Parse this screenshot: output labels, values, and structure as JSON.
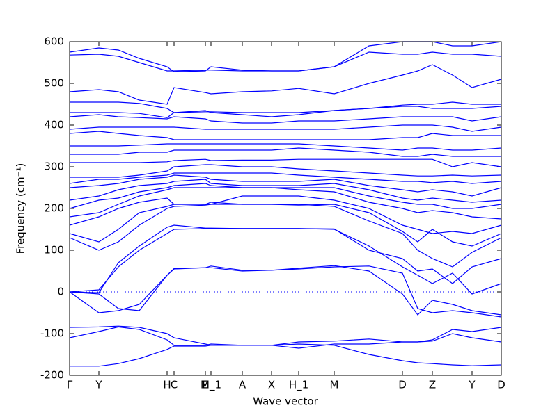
{
  "chart_data": {
    "type": "line",
    "ylabel": "Frequency (cm⁻¹)",
    "xlabel": "Wave vector",
    "color": "#0000ff",
    "zero_line": true,
    "xlim": [
      0,
      6.2
    ],
    "ylim": [
      -200,
      600
    ],
    "yticks": [
      -200,
      -100,
      0,
      100,
      200,
      300,
      400,
      500,
      600
    ],
    "xticks": [
      {
        "value": 0,
        "label": "Γ"
      },
      {
        "value": 0.42,
        "label": "Y"
      },
      {
        "value": 1.4,
        "label": "H"
      },
      {
        "value": 1.5,
        "label": "C"
      },
      {
        "value": 1.95,
        "label": "E"
      },
      {
        "value": 2.03,
        "label": "M_1"
      },
      {
        "value": 2.48,
        "label": "A"
      },
      {
        "value": 2.9,
        "label": "X"
      },
      {
        "value": 3.29,
        "label": "H_1"
      },
      {
        "value": 3.8,
        "label": "M"
      },
      {
        "value": 4.78,
        "label": "D"
      },
      {
        "value": 5.21,
        "label": "Z"
      },
      {
        "value": 5.78,
        "label": "Y"
      },
      {
        "value": 6.2,
        "label": "D"
      }
    ],
    "x": [
      0,
      0.42,
      0.7,
      1.0,
      1.4,
      1.5,
      1.95,
      2.03,
      2.48,
      2.9,
      3.29,
      3.8,
      4.3,
      4.78,
      5.0,
      5.21,
      5.5,
      5.78,
      6.2
    ],
    "series": [
      {
        "values": [
          -178,
          -178,
          -172,
          -160,
          -138,
          -130,
          -130,
          -128,
          -128,
          -128,
          -125,
          -128,
          -150,
          -165,
          -170,
          -172,
          -175,
          -177,
          -175
        ]
      },
      {
        "values": [
          -110,
          -95,
          -84,
          -90,
          -115,
          -128,
          -128,
          -125,
          -128,
          -128,
          -120,
          -118,
          -113,
          -120,
          -120,
          -118,
          -100,
          -110,
          -120
        ]
      },
      {
        "values": [
          -85,
          -84,
          -82,
          -85,
          -100,
          -110,
          -125,
          -128,
          -128,
          -128,
          -135,
          -125,
          -125,
          -120,
          -120,
          -115,
          -90,
          -95,
          -85
        ]
      },
      {
        "values": [
          0,
          -50,
          -45,
          -30,
          40,
          55,
          58,
          58,
          50,
          52,
          55,
          60,
          62,
          45,
          -40,
          -50,
          -45,
          -50,
          -60
        ]
      },
      {
        "values": [
          0,
          -5,
          -40,
          -45,
          40,
          56,
          58,
          62,
          52,
          52,
          57,
          63,
          50,
          -5,
          -55,
          -20,
          -30,
          -45,
          -55
        ]
      },
      {
        "values": [
          0,
          5,
          60,
          100,
          140,
          150,
          152,
          152,
          152,
          152,
          152,
          150,
          110,
          60,
          40,
          20,
          45,
          -5,
          20
        ]
      },
      {
        "values": [
          0,
          -2,
          70,
          110,
          155,
          160,
          153,
          153,
          152,
          152,
          152,
          151,
          100,
          80,
          50,
          55,
          20,
          60,
          80
        ]
      },
      {
        "values": [
          130,
          100,
          120,
          160,
          200,
          205,
          208,
          210,
          210,
          210,
          210,
          205,
          170,
          140,
          100,
          80,
          60,
          95,
          130
        ]
      },
      {
        "values": [
          140,
          120,
          150,
          190,
          205,
          210,
          210,
          215,
          210,
          210,
          208,
          210,
          190,
          145,
          120,
          150,
          120,
          110,
          140
        ]
      },
      {
        "values": [
          160,
          180,
          200,
          215,
          225,
          210,
          210,
          210,
          230,
          230,
          230,
          220,
          200,
          160,
          150,
          140,
          145,
          140,
          160
        ]
      },
      {
        "values": [
          180,
          190,
          210,
          230,
          245,
          250,
          250,
          250,
          250,
          250,
          245,
          240,
          215,
          200,
          190,
          195,
          190,
          180,
          175
        ]
      },
      {
        "values": [
          200,
          220,
          225,
          240,
          250,
          255,
          260,
          255,
          250,
          250,
          250,
          250,
          230,
          215,
          210,
          210,
          200,
          200,
          210
        ]
      },
      {
        "values": [
          220,
          230,
          245,
          255,
          260,
          265,
          270,
          260,
          255,
          255,
          255,
          260,
          245,
          225,
          220,
          225,
          220,
          215,
          220
        ]
      },
      {
        "values": [
          250,
          255,
          260,
          270,
          275,
          280,
          275,
          270,
          265,
          265,
          265,
          270,
          255,
          245,
          240,
          245,
          240,
          230,
          250
        ]
      },
      {
        "values": [
          260,
          270,
          270,
          275,
          280,
          285,
          285,
          285,
          285,
          285,
          280,
          275,
          270,
          265,
          265,
          262,
          265,
          260,
          265
        ]
      },
      {
        "values": [
          275,
          275,
          275,
          280,
          290,
          300,
          305,
          305,
          300,
          300,
          295,
          290,
          285,
          280,
          278,
          278,
          280,
          278,
          280
        ]
      },
      {
        "values": [
          310,
          310,
          310,
          310,
          312,
          315,
          318,
          315,
          316,
          316,
          318,
          318,
          318,
          318,
          318,
          318,
          300,
          310,
          300
        ]
      },
      {
        "values": [
          330,
          330,
          330,
          335,
          335,
          340,
          340,
          340,
          340,
          340,
          345,
          340,
          335,
          325,
          325,
          330,
          325,
          325,
          325
        ]
      },
      {
        "values": [
          350,
          350,
          350,
          352,
          355,
          355,
          355,
          355,
          355,
          355,
          355,
          350,
          345,
          340,
          345,
          345,
          340,
          340,
          345
        ]
      },
      {
        "values": [
          380,
          385,
          380,
          375,
          370,
          365,
          365,
          365,
          365,
          365,
          365,
          365,
          365,
          370,
          370,
          380,
          375,
          375,
          375
        ]
      },
      {
        "values": [
          390,
          395,
          395,
          395,
          395,
          395,
          390,
          390,
          390,
          390,
          390,
          390,
          395,
          400,
          400,
          400,
          395,
          385,
          395
        ]
      },
      {
        "values": [
          420,
          425,
          420,
          418,
          415,
          420,
          415,
          410,
          405,
          405,
          410,
          410,
          415,
          420,
          420,
          420,
          420,
          410,
          420
        ]
      },
      {
        "values": [
          430,
          430,
          430,
          428,
          418,
          430,
          435,
          430,
          425,
          420,
          425,
          435,
          440,
          445,
          445,
          440,
          440,
          440,
          445
        ]
      },
      {
        "values": [
          455,
          455,
          455,
          452,
          440,
          430,
          432,
          432,
          430,
          430,
          430,
          435,
          440,
          448,
          450,
          450,
          455,
          450,
          450
        ]
      },
      {
        "values": [
          480,
          485,
          480,
          460,
          450,
          490,
          478,
          475,
          480,
          482,
          488,
          475,
          500,
          520,
          530,
          545,
          520,
          490,
          510
        ]
      },
      {
        "values": [
          568,
          570,
          565,
          550,
          530,
          530,
          532,
          532,
          530,
          530,
          530,
          540,
          575,
          570,
          570,
          575,
          570,
          570,
          565
        ]
      },
      {
        "values": [
          575,
          585,
          580,
          560,
          540,
          528,
          530,
          540,
          532,
          530,
          530,
          540,
          590,
          600,
          600,
          600,
          590,
          590,
          600
        ]
      }
    ]
  }
}
